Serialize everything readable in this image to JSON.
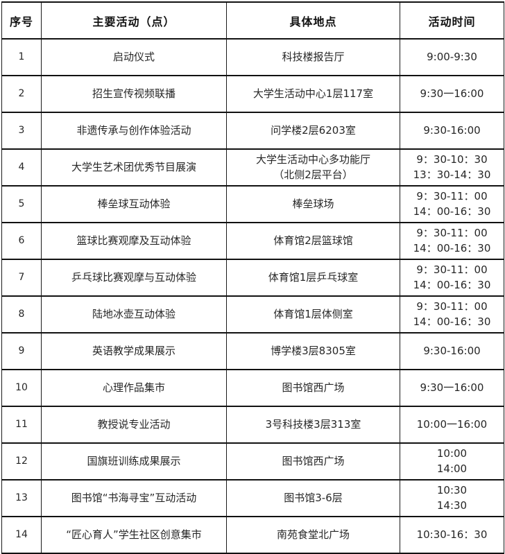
{
  "colors": {
    "background": "#ffffff",
    "border": "#1a1a1a",
    "text": "#262626",
    "header_text": "#111111"
  },
  "table": {
    "headers": {
      "no": "序号",
      "activity": "主要活动（点）",
      "location": "具体地点",
      "time": "活动时间"
    },
    "rows": [
      {
        "no": "1",
        "activity": "启动仪式",
        "location": "科技楼报告厅",
        "time": "9:00-9:30"
      },
      {
        "no": "2",
        "activity": "招生宣传视频联播",
        "location": "大学生活动中心1层117室",
        "time": "9:30一16:00"
      },
      {
        "no": "3",
        "activity": "非遗传承与创作体验活动",
        "location": "问学楼2层6203室",
        "time": "9:30-16:00"
      },
      {
        "no": "4",
        "activity": "大学生艺术团优秀节目展演",
        "location": "大学生活动中心多功能厅\n（北侧2层平台）",
        "time": "9：30-10：30\n13：30-14：30"
      },
      {
        "no": "5",
        "activity": "棒垒球互动体验",
        "location": "棒垒球场",
        "time": "9：30-11：00\n14：00-16：30"
      },
      {
        "no": "6",
        "activity": "篮球比赛观摩及互动体验",
        "location": "体育馆2层篮球馆",
        "time": "9：30-11：00\n14：00-16：30"
      },
      {
        "no": "7",
        "activity": "乒乓球比赛观摩与互动体验",
        "location": "体育馆1层乒乓球室",
        "time": "9：30-11：00\n14：00-16：30"
      },
      {
        "no": "8",
        "activity": "陆地冰壶互动体验",
        "location": "体育馆1层体侧室",
        "time": "9：30-11：00\n14：00-16：30"
      },
      {
        "no": "9",
        "activity": "英语教学成果展示",
        "location": "博学楼3层8305室",
        "time": "9:30-16:00"
      },
      {
        "no": "10",
        "activity": "心理作品集市",
        "location": "图书馆西广场",
        "time": "9:30一16:00"
      },
      {
        "no": "11",
        "activity": "教授说专业活动",
        "location": "3号科技楼3层313室",
        "time": "10:00一16:00"
      },
      {
        "no": "12",
        "activity": "国旗班训练成果展示",
        "location": "图书馆西广场",
        "time": "10:00\n14:00"
      },
      {
        "no": "13",
        "activity": "图书馆“书海寻宝”互动活动",
        "location": "图书馆3-6层",
        "time": "10:30\n14:30"
      },
      {
        "no": "14",
        "activity": "“匠心育人”学生社区创意集市",
        "location": "南苑食堂北广场",
        "time": "10:30-16：30"
      }
    ]
  }
}
